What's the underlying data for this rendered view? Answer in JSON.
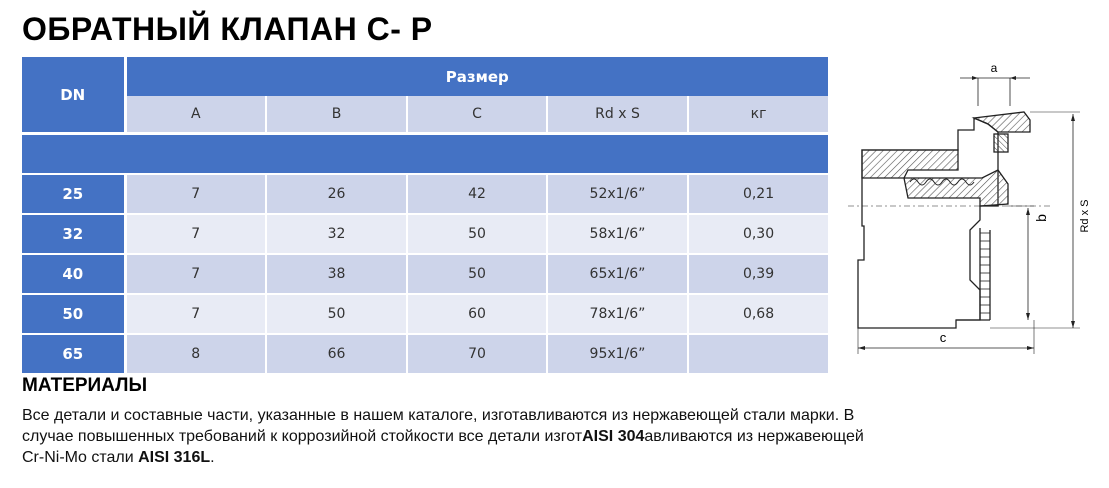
{
  "title": "ОБРАТНЫЙ КЛАПАН C- P",
  "table": {
    "dn_header": "DN",
    "size_header": "Размер",
    "columns": [
      "A",
      "B",
      "C",
      "Rd x S",
      "кг"
    ],
    "rows": [
      {
        "dn": "25",
        "values": [
          "7",
          "26",
          "42",
          "52x1/6”",
          "0,21"
        ]
      },
      {
        "dn": "32",
        "values": [
          "7",
          "32",
          "50",
          "58x1/6”",
          "0,30"
        ]
      },
      {
        "dn": "40",
        "values": [
          "7",
          "38",
          "50",
          "65x1/6”",
          "0,39"
        ]
      },
      {
        "dn": "50",
        "values": [
          "7",
          "50",
          "60",
          "78x1/6”",
          "0,68"
        ]
      },
      {
        "dn": "65",
        "values": [
          "8",
          "66",
          "70",
          "95x1/6”",
          ""
        ]
      }
    ]
  },
  "drawing": {
    "label_a": "a",
    "label_b": "b",
    "label_c": "c",
    "label_rd": "Rd x S"
  },
  "materials": {
    "title": "МАТЕРИАЛЫ",
    "line1": "Все детали и составные части, указанные в нашем каталоге, изготавливаются из нержавеющей стали марки. В",
    "line2_a": "случае повышенных требований к коррозийной стойкости все детали изгот",
    "line2_b": "AISI 304",
    "line2_c": "авливаются из нержавеющей",
    "line3_a": "Cr-Ni-Mo стали ",
    "line3_b": "AISI 316L",
    "line3_c": "."
  },
  "colors": {
    "header_blue": "#4472c4",
    "row_light": "#e8ebf5",
    "row_mid": "#cdd4ea"
  }
}
